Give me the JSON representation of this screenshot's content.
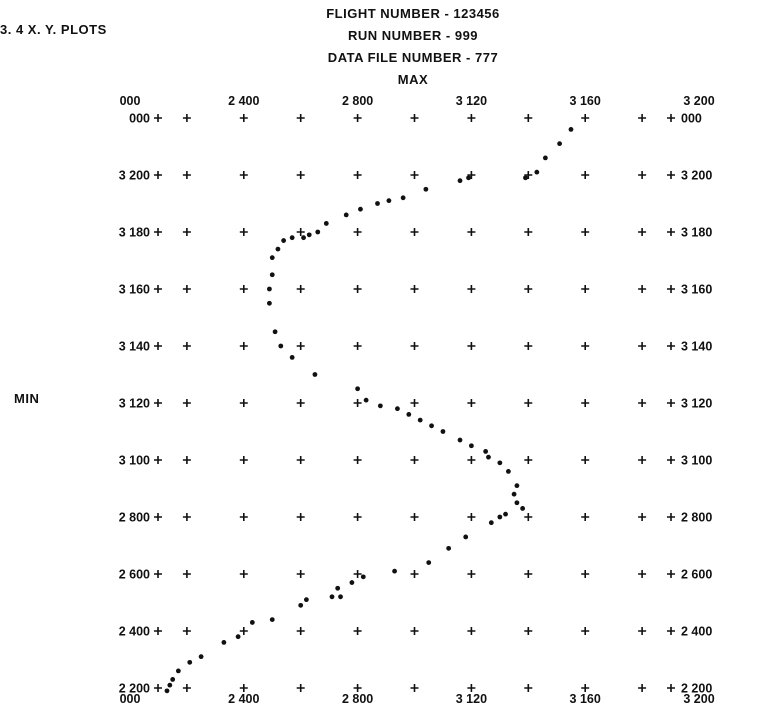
{
  "figure_label": "3. 4   X. Y. PLOTS",
  "header_lines": [
    "FLIGHT NUMBER - 123456",
    "RUN NUMBER - 999",
    "DATA FILE NUMBER - 777"
  ],
  "max_label": "MAX",
  "min_label": "MIN",
  "chart_data": {
    "type": "scatter",
    "title": "",
    "xlabel": "",
    "ylabel": "",
    "x_tick_labels_top": [
      "000",
      "2 400",
      "2 800",
      "3 120",
      "3 160",
      "3 200"
    ],
    "x_tick_labels_bottom": [
      "000",
      "2 400",
      "2 800",
      "3 120",
      "3 160",
      "3 200"
    ],
    "y_tick_labels_left": [
      "000",
      "3 200",
      "3 180",
      "3 160",
      "3 140",
      "3 120",
      "3 100",
      "2 800",
      "2 600",
      "2 400",
      "2 200"
    ],
    "y_tick_labels_right": [
      "000",
      "3 200",
      "3 180",
      "3 160",
      "3 140",
      "3 120",
      "3 100",
      "2 800",
      "2 600",
      "2 400",
      "2 200"
    ],
    "grid_columns": 11,
    "grid_rows": 11,
    "grid_marker": "+",
    "grid": true,
    "legend": "none",
    "units_note": "x and y in grid units: x 0 = left axis, 10 = right axis; y 0 = top row, 10 = bottom row",
    "points": [
      [
        7.75,
        0.2
      ],
      [
        7.55,
        0.45
      ],
      [
        7.3,
        0.7
      ],
      [
        7.15,
        0.95
      ],
      [
        6.95,
        1.05
      ],
      [
        5.95,
        1.05
      ],
      [
        5.8,
        1.1
      ],
      [
        5.2,
        1.25
      ],
      [
        4.8,
        1.4
      ],
      [
        4.55,
        1.45
      ],
      [
        4.35,
        1.5
      ],
      [
        4.05,
        1.6
      ],
      [
        3.8,
        1.7
      ],
      [
        3.45,
        1.85
      ],
      [
        3.3,
        2.0
      ],
      [
        3.15,
        2.05
      ],
      [
        3.05,
        2.1
      ],
      [
        2.85,
        2.1
      ],
      [
        2.7,
        2.15
      ],
      [
        2.6,
        2.3
      ],
      [
        2.5,
        2.45
      ],
      [
        2.5,
        2.75
      ],
      [
        2.45,
        3.0
      ],
      [
        2.45,
        3.25
      ],
      [
        2.55,
        3.75
      ],
      [
        2.65,
        4.0
      ],
      [
        2.85,
        4.2
      ],
      [
        3.25,
        4.5
      ],
      [
        4.0,
        4.75
      ],
      [
        4.15,
        4.95
      ],
      [
        4.4,
        5.05
      ],
      [
        4.7,
        5.1
      ],
      [
        4.9,
        5.2
      ],
      [
        5.1,
        5.3
      ],
      [
        5.3,
        5.4
      ],
      [
        5.5,
        5.5
      ],
      [
        5.8,
        5.65
      ],
      [
        6.0,
        5.75
      ],
      [
        6.25,
        5.85
      ],
      [
        6.3,
        5.95
      ],
      [
        6.5,
        6.05
      ],
      [
        6.65,
        6.2
      ],
      [
        6.8,
        6.45
      ],
      [
        6.75,
        6.6
      ],
      [
        6.8,
        6.75
      ],
      [
        6.9,
        6.85
      ],
      [
        6.6,
        6.95
      ],
      [
        6.5,
        7.0
      ],
      [
        6.35,
        7.1
      ],
      [
        5.9,
        7.35
      ],
      [
        5.6,
        7.55
      ],
      [
        5.25,
        7.8
      ],
      [
        4.65,
        7.95
      ],
      [
        4.1,
        8.05
      ],
      [
        3.9,
        8.15
      ],
      [
        3.65,
        8.25
      ],
      [
        3.55,
        8.4
      ],
      [
        3.7,
        8.4
      ],
      [
        3.1,
        8.45
      ],
      [
        3.0,
        8.55
      ],
      [
        2.5,
        8.8
      ],
      [
        2.15,
        8.85
      ],
      [
        1.9,
        9.1
      ],
      [
        1.65,
        9.2
      ],
      [
        1.25,
        9.45
      ],
      [
        1.05,
        9.55
      ],
      [
        0.85,
        9.7
      ],
      [
        0.75,
        9.85
      ],
      [
        0.7,
        9.95
      ],
      [
        0.65,
        10.05
      ]
    ]
  }
}
